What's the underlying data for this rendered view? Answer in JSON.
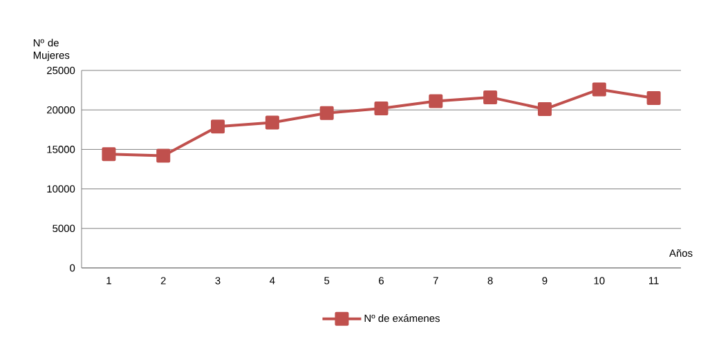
{
  "chart_data": {
    "type": "line",
    "xlabel": "Años",
    "ylabel": "Nº de Mujeres",
    "categories": [
      "1",
      "2",
      "3",
      "4",
      "5",
      "6",
      "7",
      "8",
      "9",
      "10",
      "11"
    ],
    "series": [
      {
        "name": "Nº de exámenes",
        "color": "#c0504d",
        "values": [
          14400,
          14200,
          17900,
          18400,
          19600,
          20200,
          21100,
          21600,
          20100,
          22600,
          21500
        ]
      }
    ],
    "ylim": [
      0,
      25000
    ],
    "yticks": [
      0,
      5000,
      10000,
      15000,
      20000,
      25000
    ],
    "grid": "y",
    "legend": "bottom",
    "marker": "square",
    "line_style": "solid"
  }
}
